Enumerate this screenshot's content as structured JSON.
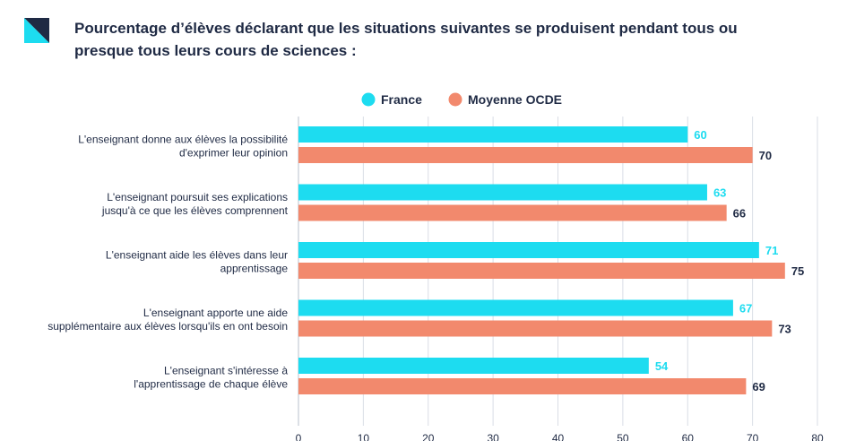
{
  "title": "Pourcentage d’élèves déclarant que les situations suivantes se produisent pendant tous ou presque tous leurs cours de sciences :",
  "colors": {
    "france": "#1ddcf0",
    "ocde": "#f2896d",
    "france_label": "#1ddcf0",
    "ocde_label": "#1f2a44",
    "text": "#1f2a44",
    "grid": "#d9dee6",
    "logo_dark": "#1f2a44",
    "logo_light": "#1ddcf0"
  },
  "icons": {
    "logo": "diagonal-split-square-logo"
  },
  "chart_data": {
    "type": "bar",
    "orientation": "horizontal",
    "categories": [
      [
        "L'enseignant donne aux élèves la possibilité",
        "d'exprimer leur opinion"
      ],
      [
        "L'enseignant poursuit ses explications",
        "jusqu'à ce que les élèves comprennent"
      ],
      [
        "L'enseignant aide les élèves dans leur",
        "apprentissage"
      ],
      [
        "L'enseignant apporte une aide",
        "supplémentaire aux élèves lorsqu'ils en ont besoin"
      ],
      [
        "L'enseignant s'intéresse à",
        "l'apprentissage de chaque élève"
      ]
    ],
    "series": [
      {
        "name": "France",
        "values": [
          60,
          63,
          71,
          67,
          54
        ]
      },
      {
        "name": "Moyenne OCDE",
        "values": [
          70,
          66,
          75,
          73,
          69
        ]
      }
    ],
    "xlim": [
      0,
      80
    ],
    "xticks": [
      0,
      10,
      20,
      30,
      40,
      50,
      60,
      70,
      80
    ],
    "grid": true,
    "legend": "top-center"
  }
}
